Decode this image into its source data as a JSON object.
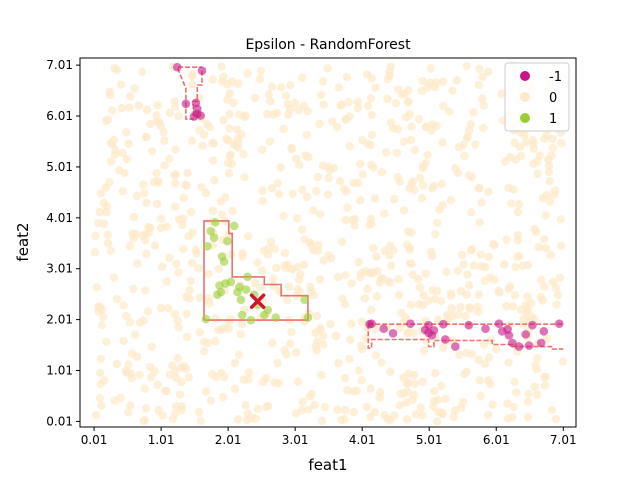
{
  "chart_data": {
    "type": "scatter",
    "title": "Epsilon - RandomForest",
    "xlabel": "feat1",
    "ylabel": "feat2",
    "xlim": [
      -0.2,
      7.2
    ],
    "ylim": [
      -0.1,
      7.15
    ],
    "xticks": [
      0.01,
      1.01,
      2.01,
      3.01,
      4.01,
      5.01,
      6.01,
      7.01
    ],
    "xtick_labels": [
      "0.01",
      "1.01",
      "2.01",
      "3.01",
      "4.01",
      "5.01",
      "6.01",
      "7.01"
    ],
    "yticks": [
      0.01,
      1.01,
      2.01,
      3.01,
      4.01,
      5.01,
      6.01,
      7.01
    ],
    "ytick_labels": [
      "0.01",
      "1.01",
      "2.01",
      "3.01",
      "4.01",
      "5.01",
      "6.01",
      "7.01"
    ],
    "grid": false,
    "legend_position": "top-right",
    "legend": [
      {
        "label": "-1",
        "color": "#c71585"
      },
      {
        "label": "0",
        "color": "#fde9c9"
      },
      {
        "label": "1",
        "color": "#9acd32"
      }
    ],
    "background_class": {
      "name": "0",
      "color": "#fde9c9",
      "count": 900,
      "x_range": [
        0.01,
        7.01
      ],
      "y_range": [
        0.01,
        7.01
      ]
    },
    "series": [
      {
        "name": "-1",
        "color": "#c71585",
        "points": [
          [
            1.25,
            6.97
          ],
          [
            1.38,
            6.25
          ],
          [
            1.53,
            6.27
          ],
          [
            1.55,
            6.05
          ],
          [
            1.5,
            6.0
          ],
          [
            1.6,
            6.02
          ],
          [
            1.55,
            6.15
          ],
          [
            1.62,
            6.9
          ],
          [
            4.12,
            1.92
          ],
          [
            4.15,
            1.93
          ],
          [
            4.33,
            1.83
          ],
          [
            4.47,
            1.74
          ],
          [
            4.73,
            1.93
          ],
          [
            4.95,
            1.81
          ],
          [
            5.0,
            1.9
          ],
          [
            5.0,
            1.75
          ],
          [
            5.05,
            1.7
          ],
          [
            5.08,
            1.8
          ],
          [
            5.22,
            1.92
          ],
          [
            5.25,
            1.62
          ],
          [
            5.4,
            1.48
          ],
          [
            5.6,
            1.9
          ],
          [
            5.85,
            1.83
          ],
          [
            6.05,
            1.93
          ],
          [
            6.1,
            1.78
          ],
          [
            6.18,
            1.82
          ],
          [
            6.2,
            1.7
          ],
          [
            6.25,
            1.55
          ],
          [
            6.35,
            1.48
          ],
          [
            6.45,
            1.72
          ],
          [
            6.5,
            1.5
          ],
          [
            6.55,
            1.9
          ],
          [
            6.68,
            1.55
          ],
          [
            6.72,
            1.78
          ],
          [
            6.95,
            1.93
          ]
        ]
      },
      {
        "name": "1",
        "color": "#9acd32",
        "points": [
          [
            1.68,
            2.02
          ],
          [
            1.7,
            3.45
          ],
          [
            1.75,
            3.75
          ],
          [
            1.8,
            3.62
          ],
          [
            1.82,
            3.92
          ],
          [
            1.85,
            2.5
          ],
          [
            1.88,
            2.68
          ],
          [
            1.9,
            2.55
          ],
          [
            1.92,
            3.25
          ],
          [
            1.95,
            3.15
          ],
          [
            1.97,
            2.72
          ],
          [
            2.0,
            3.55
          ],
          [
            2.05,
            2.75
          ],
          [
            2.1,
            3.85
          ],
          [
            2.15,
            2.55
          ],
          [
            2.18,
            2.65
          ],
          [
            2.2,
            2.4
          ],
          [
            2.22,
            2.1
          ],
          [
            2.28,
            2.6
          ],
          [
            2.3,
            2.85
          ],
          [
            2.35,
            2.0
          ],
          [
            2.4,
            2.5
          ],
          [
            2.45,
            2.3
          ],
          [
            2.55,
            2.1
          ],
          [
            2.6,
            2.2
          ],
          [
            2.72,
            2.05
          ],
          [
            3.15,
            2.4
          ],
          [
            3.2,
            2.05
          ]
        ]
      }
    ],
    "marker": {
      "label": "",
      "x": 2.45,
      "y": 2.37,
      "color": "#d2142c"
    },
    "boundaries": [
      {
        "color": "#f0706a",
        "style": "dashed",
        "points": [
          [
            1.62,
            6.9
          ],
          [
            1.62,
            6.62
          ],
          [
            1.55,
            6.62
          ],
          [
            1.55,
            6.3
          ],
          [
            1.49,
            6.3
          ],
          [
            1.49,
            5.95
          ],
          [
            1.38,
            5.95
          ],
          [
            1.38,
            6.55
          ],
          [
            1.25,
            6.97
          ],
          [
            1.62,
            6.97
          ]
        ]
      },
      {
        "color": "#f0706a",
        "style": "solid",
        "points": [
          [
            1.65,
            2.0
          ],
          [
            1.65,
            3.95
          ],
          [
            2.02,
            3.95
          ],
          [
            2.02,
            3.7
          ],
          [
            2.07,
            3.7
          ],
          [
            2.07,
            2.85
          ],
          [
            2.55,
            2.85
          ],
          [
            2.55,
            2.7
          ],
          [
            2.8,
            2.7
          ],
          [
            2.8,
            2.48
          ],
          [
            3.2,
            2.48
          ],
          [
            3.2,
            2.0
          ],
          [
            1.65,
            2.0
          ]
        ]
      },
      {
        "color": "#f0706a",
        "style": "dashed",
        "points": [
          [
            4.1,
            1.92
          ],
          [
            4.1,
            1.45
          ],
          [
            4.15,
            1.45
          ],
          [
            4.15,
            1.62
          ],
          [
            5.0,
            1.62
          ],
          [
            5.0,
            1.48
          ],
          [
            5.08,
            1.48
          ],
          [
            5.08,
            1.6
          ],
          [
            5.95,
            1.6
          ],
          [
            5.95,
            1.52
          ],
          [
            6.25,
            1.52
          ],
          [
            6.25,
            1.48
          ],
          [
            6.85,
            1.48
          ],
          [
            6.85,
            1.43
          ],
          [
            7.01,
            1.43
          ]
        ]
      },
      {
        "color": "#f0706a",
        "style": "dashed",
        "points": [
          [
            4.1,
            1.92
          ],
          [
            7.01,
            1.92
          ]
        ]
      }
    ]
  }
}
